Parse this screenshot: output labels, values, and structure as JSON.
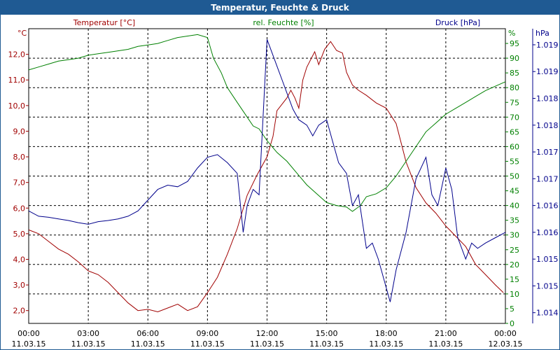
{
  "window": {
    "title": "Temperatur, Feuchte & Druck"
  },
  "chart_data": {
    "type": "line",
    "title": "Temperatur, Feuchte & Druck",
    "grid": true,
    "x": {
      "ticks": [
        {
          "time": "00:00",
          "date": "11.03.15"
        },
        {
          "time": "03:00",
          "date": "11.03.15"
        },
        {
          "time": "06:00",
          "date": "11.03.15"
        },
        {
          "time": "09:00",
          "date": "11.03.15"
        },
        {
          "time": "12:00",
          "date": "11.03.15"
        },
        {
          "time": "15:00",
          "date": "11.03.15"
        },
        {
          "time": "18:00",
          "date": "11.03.15"
        },
        {
          "time": "21:00",
          "date": "11.03.15"
        },
        {
          "time": "00:00",
          "date": "12.03.15"
        }
      ],
      "start": "2015-03-11 00:00",
      "end": "2015-03-12 00:00",
      "unit": "hours"
    },
    "axes": {
      "temperature": {
        "title": "Temperatur [°C]",
        "unit": "°C",
        "color": "#a00000",
        "range": [
          1.5,
          13.0
        ],
        "ticks": [
          2.0,
          3.0,
          4.0,
          5.0,
          6.0,
          7.0,
          8.0,
          9.0,
          10.0,
          11.0,
          12.0
        ],
        "tick_labels": [
          "2,0",
          "3,0",
          "4,0",
          "5,0",
          "6,0",
          "7,0",
          "8,0",
          "9,0",
          "10,0",
          "11,0",
          "12,0"
        ]
      },
      "humidity": {
        "title": "rel. Feuchte [%]",
        "unit": "%",
        "color": "#008000",
        "range": [
          0,
          100
        ],
        "ticks": [
          0,
          5,
          10,
          15,
          20,
          25,
          30,
          35,
          40,
          45,
          50,
          55,
          60,
          65,
          70,
          75,
          80,
          85,
          90,
          95
        ],
        "tick_labels": [
          "0",
          "5",
          "10",
          "15",
          "20",
          "25",
          "30",
          "35",
          "40",
          "45",
          "50",
          "55",
          "60",
          "65",
          "70",
          "75",
          "80",
          "85",
          "90",
          "95"
        ]
      },
      "pressure": {
        "title": "Druck [hPa]",
        "unit": "hPa",
        "color": "#00008b",
        "range": [
          1013.8,
          1019.3
        ],
        "ticks": [
          1014.0,
          1014.5,
          1015.0,
          1015.5,
          1016.0,
          1016.5,
          1017.0,
          1017.5,
          1018.0,
          1018.5,
          1019.0,
          1019.5
        ],
        "tick_labels": [
          "1.014",
          "1.015",
          "1.015",
          "1.016",
          "1.016",
          "1.017",
          "1.017",
          "1.018",
          "1.018",
          "1.019",
          "1.019",
          "1.019"
        ]
      }
    },
    "series": [
      {
        "name": "Temperatur [°C]",
        "axis": "temperature",
        "color": "#a00000",
        "points": [
          [
            0,
            5.15
          ],
          [
            0.5,
            5.0
          ],
          [
            1,
            4.7
          ],
          [
            1.5,
            4.4
          ],
          [
            2,
            4.2
          ],
          [
            2.5,
            3.9
          ],
          [
            3,
            3.55
          ],
          [
            3.5,
            3.4
          ],
          [
            4,
            3.1
          ],
          [
            4.5,
            2.7
          ],
          [
            5,
            2.3
          ],
          [
            5.5,
            2.0
          ],
          [
            6,
            2.05
          ],
          [
            6.5,
            1.95
          ],
          [
            7,
            2.1
          ],
          [
            7.5,
            2.25
          ],
          [
            8,
            2.0
          ],
          [
            8.5,
            2.15
          ],
          [
            9,
            2.7
          ],
          [
            9.5,
            3.3
          ],
          [
            10,
            4.2
          ],
          [
            10.5,
            5.2
          ],
          [
            11,
            6.5
          ],
          [
            11.5,
            7.3
          ],
          [
            12,
            8.0
          ],
          [
            12.3,
            8.8
          ],
          [
            12.5,
            9.8
          ],
          [
            12.8,
            10.1
          ],
          [
            13,
            10.3
          ],
          [
            13.2,
            10.6
          ],
          [
            13.4,
            10.3
          ],
          [
            13.6,
            9.9
          ],
          [
            13.8,
            11.0
          ],
          [
            14,
            11.5
          ],
          [
            14.4,
            12.1
          ],
          [
            14.6,
            11.6
          ],
          [
            14.9,
            12.2
          ],
          [
            15.2,
            12.5
          ],
          [
            15.5,
            12.15
          ],
          [
            15.8,
            12.05
          ],
          [
            16,
            11.3
          ],
          [
            16.3,
            10.8
          ],
          [
            16.6,
            10.6
          ],
          [
            17,
            10.4
          ],
          [
            17.5,
            10.1
          ],
          [
            18,
            9.9
          ],
          [
            18.5,
            9.3
          ],
          [
            19,
            7.8
          ],
          [
            19.5,
            6.8
          ],
          [
            20,
            6.2
          ],
          [
            20.5,
            5.8
          ],
          [
            21,
            5.3
          ],
          [
            21.5,
            4.9
          ],
          [
            22,
            4.5
          ],
          [
            22.5,
            3.8
          ],
          [
            23,
            3.4
          ],
          [
            23.5,
            3.0
          ],
          [
            23.9,
            2.7
          ]
        ]
      },
      {
        "name": "rel. Feuchte [%]",
        "axis": "humidity",
        "color": "#008000",
        "points": [
          [
            0,
            86
          ],
          [
            0.5,
            87
          ],
          [
            1,
            88
          ],
          [
            1.5,
            89
          ],
          [
            2,
            89.5
          ],
          [
            2.5,
            90
          ],
          [
            3,
            91
          ],
          [
            3.5,
            91.5
          ],
          [
            4,
            92
          ],
          [
            4.5,
            92.5
          ],
          [
            5,
            93
          ],
          [
            5.5,
            94
          ],
          [
            6,
            94.5
          ],
          [
            6.5,
            95
          ],
          [
            7,
            96
          ],
          [
            7.5,
            97
          ],
          [
            8,
            97.5
          ],
          [
            8.5,
            98
          ],
          [
            9,
            97
          ],
          [
            9.3,
            90
          ],
          [
            9.7,
            85
          ],
          [
            10,
            80
          ],
          [
            10.5,
            75
          ],
          [
            11,
            70
          ],
          [
            11.3,
            67
          ],
          [
            11.6,
            66
          ],
          [
            12,
            62
          ],
          [
            12.5,
            58
          ],
          [
            13,
            55
          ],
          [
            13.5,
            51
          ],
          [
            14,
            47
          ],
          [
            14.5,
            44
          ],
          [
            15,
            41
          ],
          [
            15.5,
            40
          ],
          [
            16,
            39.5
          ],
          [
            16.3,
            38
          ],
          [
            16.7,
            40
          ],
          [
            17,
            43
          ],
          [
            17.5,
            44
          ],
          [
            18,
            46
          ],
          [
            18.5,
            50
          ],
          [
            19,
            55
          ],
          [
            19.5,
            60
          ],
          [
            20,
            65
          ],
          [
            20.5,
            68
          ],
          [
            21,
            71
          ],
          [
            21.5,
            73
          ],
          [
            22,
            75
          ],
          [
            22.5,
            77
          ],
          [
            23,
            79
          ],
          [
            23.5,
            80.5
          ],
          [
            24,
            82
          ]
        ]
      },
      {
        "name": "Druck [hPa]",
        "axis": "pressure",
        "color": "#00008b",
        "points": [
          [
            0,
            1015.9
          ],
          [
            0.5,
            1015.8
          ],
          [
            1,
            1015.78
          ],
          [
            1.5,
            1015.75
          ],
          [
            2,
            1015.72
          ],
          [
            2.5,
            1015.68
          ],
          [
            3,
            1015.65
          ],
          [
            3.5,
            1015.7
          ],
          [
            4,
            1015.72
          ],
          [
            4.5,
            1015.75
          ],
          [
            5,
            1015.8
          ],
          [
            5.5,
            1015.9
          ],
          [
            6,
            1016.1
          ],
          [
            6.5,
            1016.3
          ],
          [
            7,
            1016.38
          ],
          [
            7.5,
            1016.35
          ],
          [
            8,
            1016.45
          ],
          [
            8.5,
            1016.7
          ],
          [
            9,
            1016.9
          ],
          [
            9.5,
            1016.95
          ],
          [
            10,
            1016.8
          ],
          [
            10.5,
            1016.6
          ],
          [
            10.8,
            1015.5
          ],
          [
            11,
            1016.0
          ],
          [
            11.3,
            1016.3
          ],
          [
            11.6,
            1016.2
          ],
          [
            12,
            1019.1
          ],
          [
            12.2,
            1018.9
          ],
          [
            12.5,
            1018.6
          ],
          [
            12.8,
            1018.3
          ],
          [
            13,
            1018.1
          ],
          [
            13.3,
            1017.8
          ],
          [
            13.6,
            1017.6
          ],
          [
            14,
            1017.5
          ],
          [
            14.3,
            1017.3
          ],
          [
            14.6,
            1017.5
          ],
          [
            15,
            1017.6
          ],
          [
            15.3,
            1017.2
          ],
          [
            15.6,
            1016.8
          ],
          [
            16,
            1016.6
          ],
          [
            16.3,
            1016.0
          ],
          [
            16.6,
            1016.2
          ],
          [
            17,
            1015.2
          ],
          [
            17.3,
            1015.3
          ],
          [
            17.6,
            1015.0
          ],
          [
            17.9,
            1014.6
          ],
          [
            18.2,
            1014.2
          ],
          [
            18.5,
            1014.8
          ],
          [
            19,
            1015.5
          ],
          [
            19.5,
            1016.5
          ],
          [
            20,
            1016.9
          ],
          [
            20.3,
            1016.2
          ],
          [
            20.6,
            1016.0
          ],
          [
            21,
            1016.7
          ],
          [
            21.3,
            1016.3
          ],
          [
            21.6,
            1015.4
          ],
          [
            22,
            1015.0
          ],
          [
            22.3,
            1015.3
          ],
          [
            22.6,
            1015.2
          ],
          [
            23,
            1015.3
          ],
          [
            23.5,
            1015.4
          ],
          [
            24,
            1015.5
          ]
        ]
      }
    ]
  }
}
